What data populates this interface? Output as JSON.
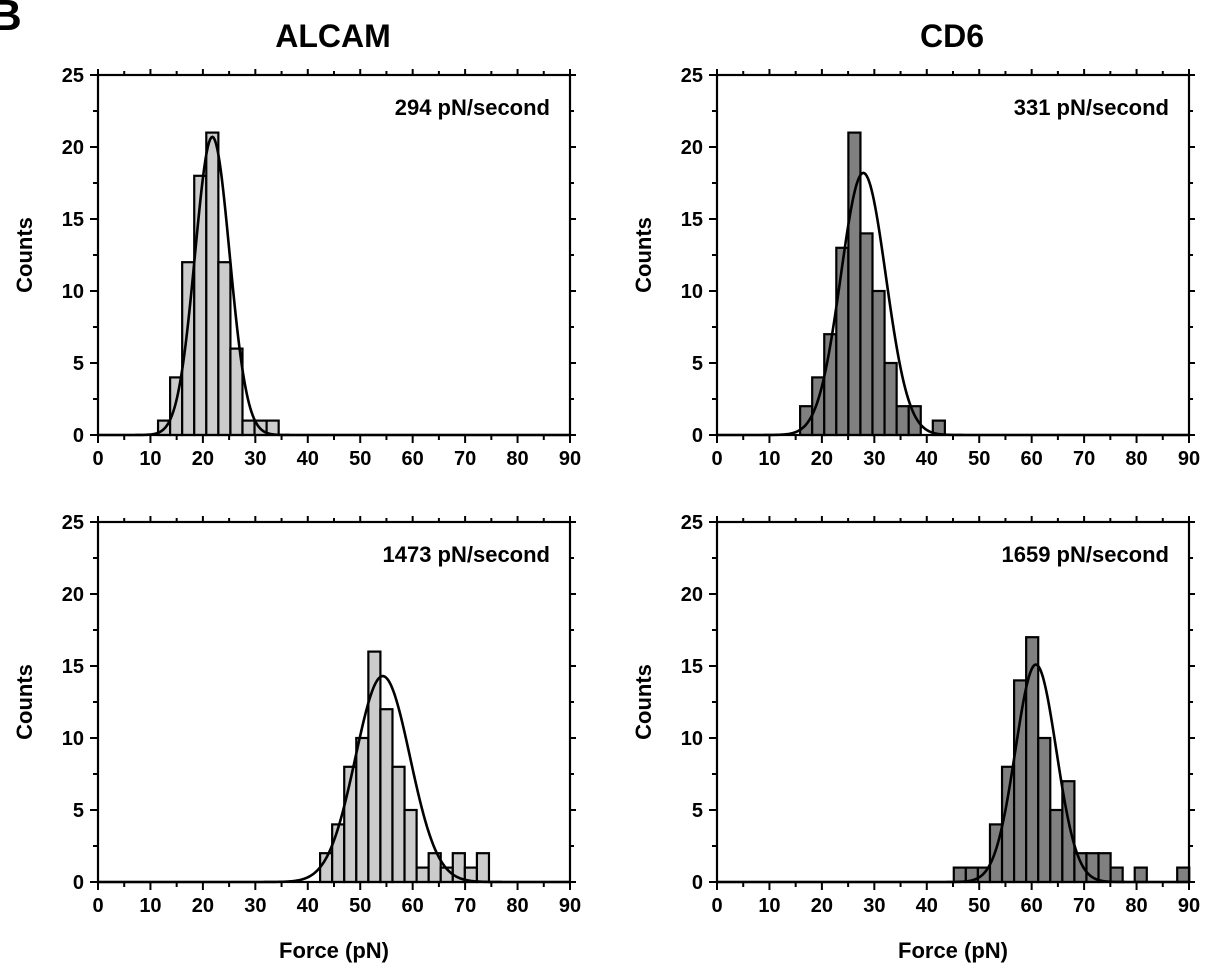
{
  "figure": {
    "panel_letter": "B",
    "column_titles": [
      "ALCAM",
      "CD6"
    ],
    "xlabel": "Force (pN)",
    "ylabel": "Counts"
  },
  "colors": {
    "alcam_bar": "#cccccc",
    "cd6_bar": "#808080",
    "axis": "#000000",
    "fit_line": "#000000"
  },
  "chart_data": [
    {
      "type": "bar",
      "title": "ALCAM",
      "rate_label": "294 pN/second",
      "xlabel": "",
      "ylabel": "Counts",
      "xlim": [
        0,
        90
      ],
      "ylim": [
        0,
        25
      ],
      "xticks": [
        0,
        10,
        20,
        30,
        40,
        50,
        60,
        70,
        80,
        90
      ],
      "yticks": [
        0,
        5,
        10,
        15,
        20,
        25
      ],
      "bin_width": 2.3,
      "bin_centers": [
        12.6,
        14.9,
        17.2,
        19.5,
        21.8,
        24.1,
        26.4,
        28.7,
        31.0,
        33.3
      ],
      "values": [
        1,
        4,
        12,
        18,
        21,
        12,
        6,
        1,
        1,
        1
      ],
      "fit": {
        "type": "gaussian",
        "mean": 21.8,
        "sigma": 3.3,
        "amplitude": 20.7
      }
    },
    {
      "type": "bar",
      "title": "CD6",
      "rate_label": "331 pN/second",
      "xlabel": "",
      "ylabel": "Counts",
      "xlim": [
        0,
        90
      ],
      "ylim": [
        0,
        25
      ],
      "xticks": [
        0,
        10,
        20,
        30,
        40,
        50,
        60,
        70,
        80,
        90
      ],
      "yticks": [
        0,
        5,
        10,
        15,
        20,
        25
      ],
      "bin_width": 2.3,
      "bin_centers": [
        17.0,
        19.3,
        21.6,
        23.9,
        26.2,
        28.5,
        30.8,
        33.1,
        35.4,
        37.7,
        42.3
      ],
      "values": [
        2,
        4,
        7,
        13,
        21,
        14,
        10,
        5,
        2,
        2,
        1
      ],
      "fit": {
        "type": "gaussian",
        "mean": 27.9,
        "sigma": 4.3,
        "amplitude": 18.2
      }
    },
    {
      "type": "bar",
      "title": "",
      "rate_label": "1473 pN/second",
      "xlabel": "Force (pN)",
      "ylabel": "Counts",
      "xlim": [
        0,
        90
      ],
      "ylim": [
        0,
        25
      ],
      "xticks": [
        0,
        10,
        20,
        30,
        40,
        50,
        60,
        70,
        80,
        90
      ],
      "yticks": [
        0,
        5,
        10,
        15,
        20,
        25
      ],
      "bin_width": 2.3,
      "bin_centers": [
        43.5,
        45.8,
        48.1,
        50.4,
        52.7,
        55.0,
        57.3,
        59.6,
        61.9,
        64.2,
        66.5,
        68.8,
        71.1,
        73.4
      ],
      "values": [
        2,
        4,
        8,
        10,
        16,
        12,
        8,
        5,
        1,
        2,
        1,
        2,
        1,
        2
      ],
      "fit": {
        "type": "gaussian",
        "mean": 54.3,
        "sigma": 5.2,
        "amplitude": 14.3
      }
    },
    {
      "type": "bar",
      "title": "",
      "rate_label": "1659 pN/second",
      "xlabel": "Force (pN)",
      "ylabel": "Counts",
      "xlim": [
        0,
        90
      ],
      "ylim": [
        0,
        25
      ],
      "xticks": [
        0,
        10,
        20,
        30,
        40,
        50,
        60,
        70,
        80,
        90
      ],
      "yticks": [
        0,
        5,
        10,
        15,
        20,
        25
      ],
      "bin_width": 2.3,
      "bin_centers": [
        46.3,
        48.6,
        50.9,
        53.2,
        55.5,
        57.8,
        60.1,
        62.4,
        64.7,
        67.0,
        69.3,
        71.6,
        73.9,
        76.2,
        80.8,
        88.9
      ],
      "values": [
        1,
        1,
        1,
        4,
        8,
        14,
        17,
        10,
        5,
        7,
        2,
        2,
        2,
        1,
        1,
        1
      ],
      "fit": {
        "type": "gaussian",
        "mean": 60.8,
        "sigma": 3.9,
        "amplitude": 15.1
      }
    }
  ]
}
